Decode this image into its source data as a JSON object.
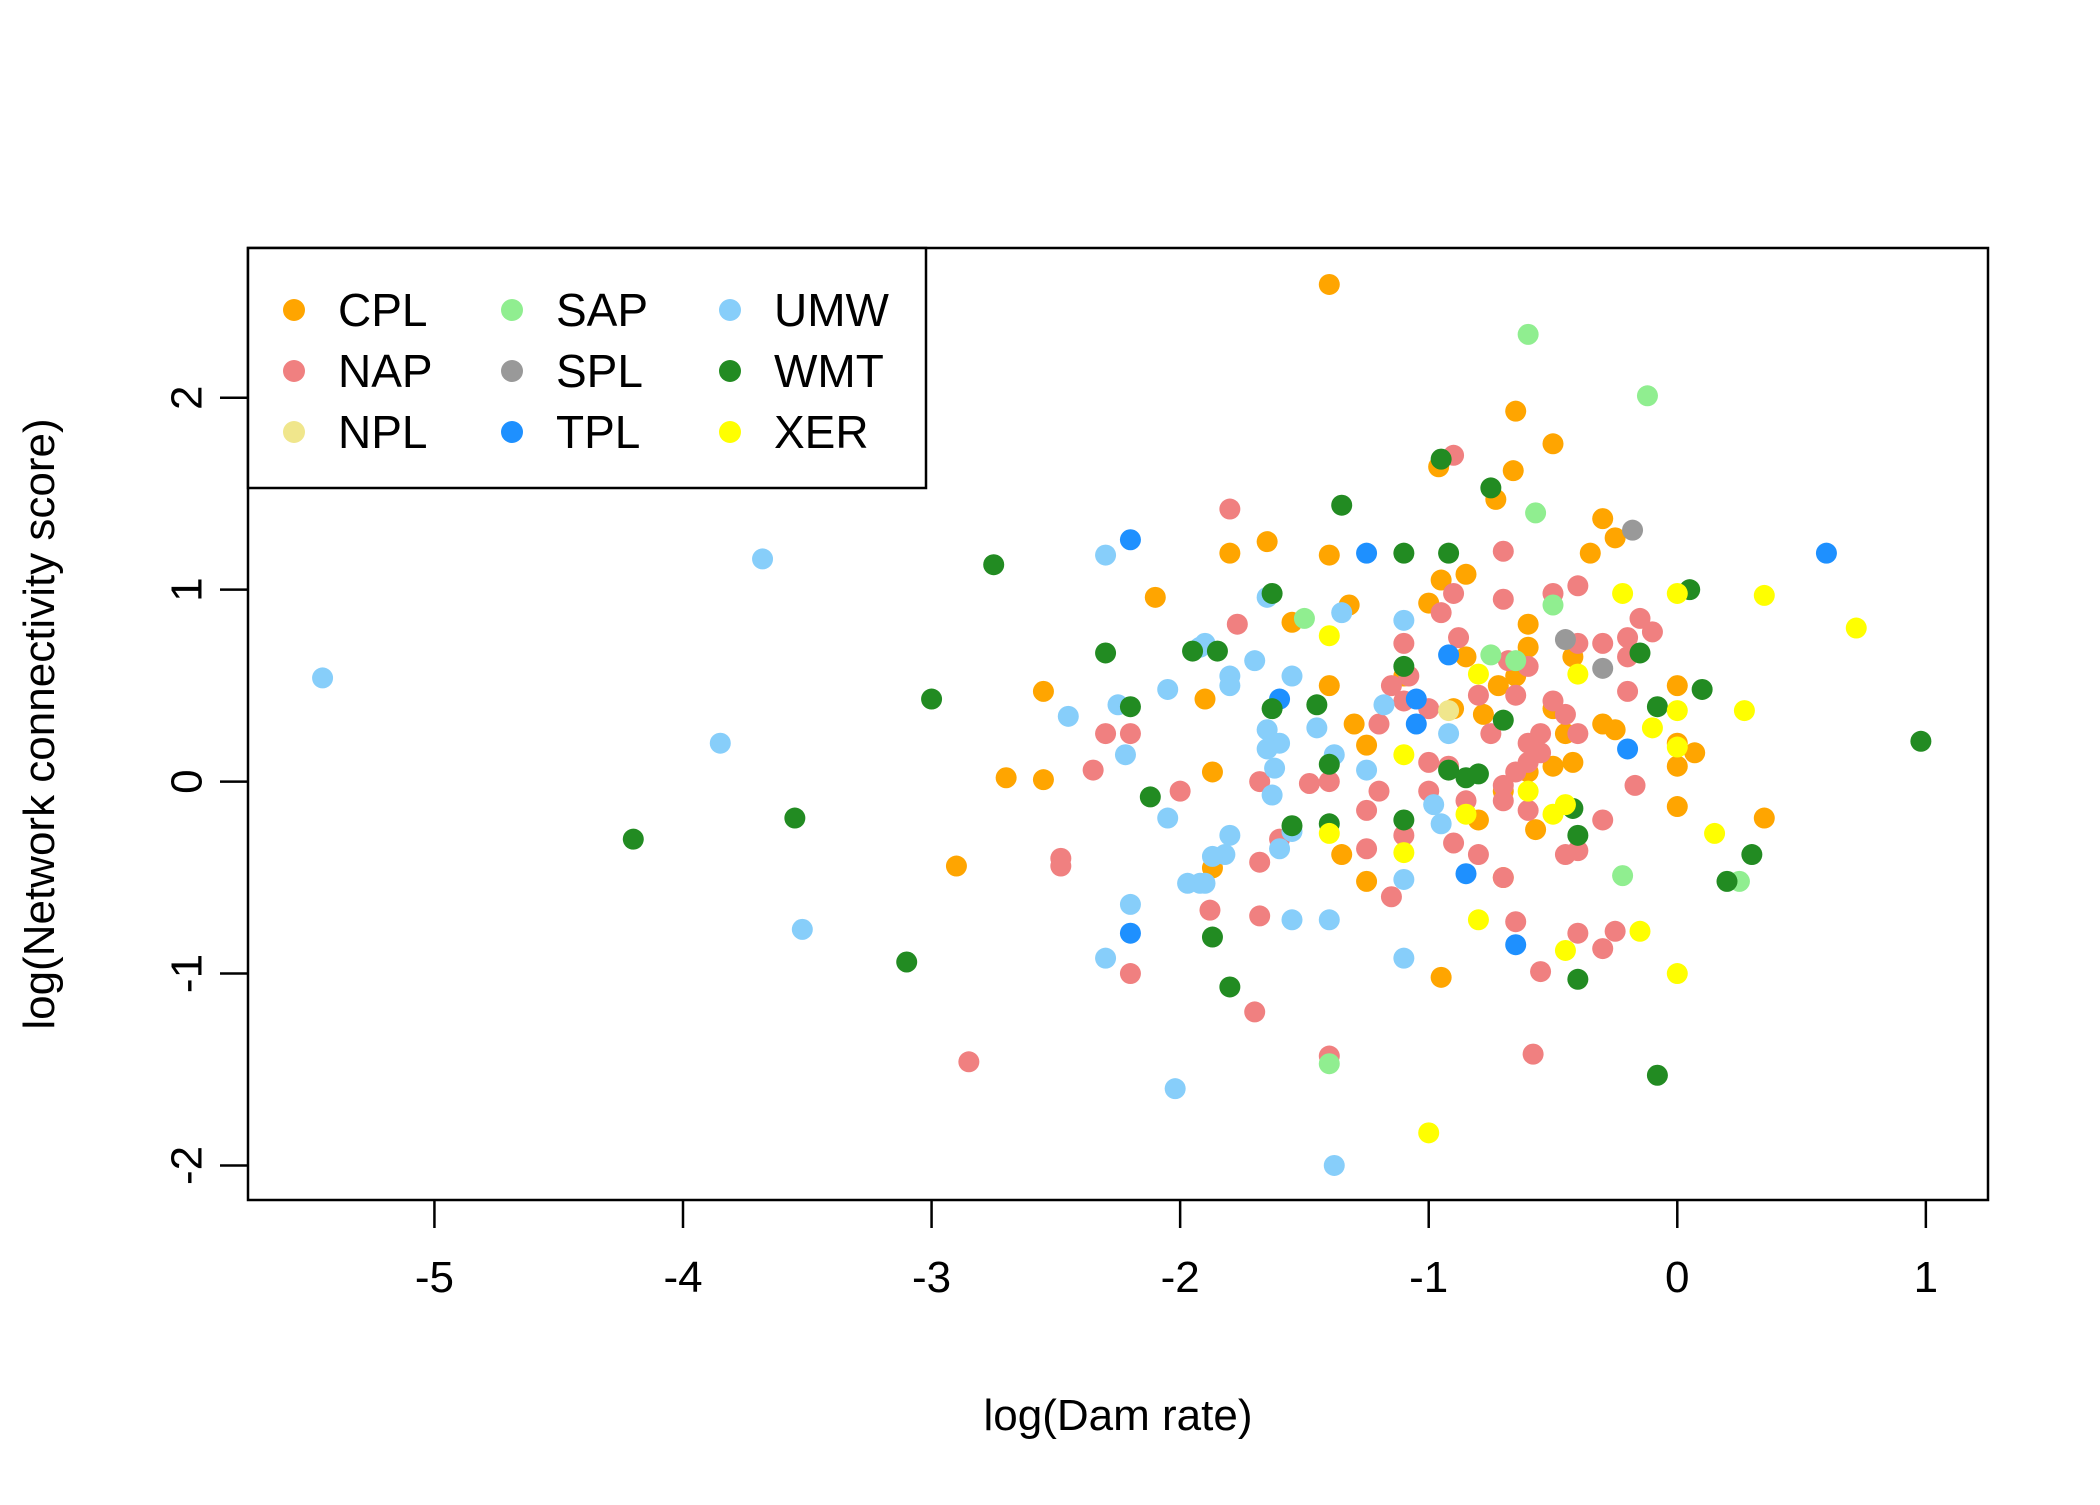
{
  "chart_data": {
    "type": "scatter",
    "title": "",
    "xlabel": "log(Dam rate)",
    "ylabel": "log(Network connectivity score)",
    "xlim": [
      -5.75,
      1.25
    ],
    "ylim": [
      -2.18,
      2.78
    ],
    "x_ticks": [
      -5,
      -4,
      -3,
      -2,
      -1,
      0,
      1
    ],
    "y_ticks": [
      -2,
      -1,
      0,
      1,
      2
    ],
    "grid": false,
    "legend_position": "top-left",
    "series": [
      {
        "name": "CPL",
        "color": "#FFA500",
        "points": [
          [
            -1.4,
            2.59
          ],
          [
            -0.65,
            1.93
          ],
          [
            -0.5,
            1.76
          ],
          [
            -0.96,
            1.64
          ],
          [
            -0.66,
            1.62
          ],
          [
            -0.73,
            1.47
          ],
          [
            -0.3,
            1.37
          ],
          [
            -0.25,
            1.27
          ],
          [
            -0.35,
            1.19
          ],
          [
            -1.4,
            1.18
          ],
          [
            -1.8,
            1.19
          ],
          [
            -1.65,
            1.25
          ],
          [
            -2.1,
            0.96
          ],
          [
            -1.32,
            0.92
          ],
          [
            -1.0,
            0.93
          ],
          [
            -0.85,
            1.08
          ],
          [
            -0.95,
            1.05
          ],
          [
            -1.55,
            0.83
          ],
          [
            -0.6,
            0.82
          ],
          [
            -0.6,
            0.7
          ],
          [
            -0.42,
            0.65
          ],
          [
            -1.4,
            0.5
          ],
          [
            -1.9,
            0.43
          ],
          [
            -2.55,
            0.47
          ],
          [
            -1.1,
            0.55
          ],
          [
            -0.9,
            0.38
          ],
          [
            -0.72,
            0.5
          ],
          [
            -0.78,
            0.35
          ],
          [
            -0.85,
            0.65
          ],
          [
            -0.65,
            0.55
          ],
          [
            -0.5,
            0.38
          ],
          [
            -0.45,
            0.25
          ],
          [
            -0.3,
            0.3
          ],
          [
            -0.25,
            0.27
          ],
          [
            0.0,
            0.5
          ],
          [
            0.0,
            0.2
          ],
          [
            0.0,
            0.08
          ],
          [
            0.07,
            0.15
          ],
          [
            -1.3,
            0.3
          ],
          [
            -1.25,
            0.19
          ],
          [
            -0.6,
            0.05
          ],
          [
            -0.5,
            0.08
          ],
          [
            -0.42,
            0.1
          ],
          [
            -2.7,
            0.02
          ],
          [
            -2.55,
            0.01
          ],
          [
            -1.87,
            0.05
          ],
          [
            -0.7,
            -0.05
          ],
          [
            -0.8,
            -0.2
          ],
          [
            -0.57,
            -0.25
          ],
          [
            -1.35,
            -0.38
          ],
          [
            -0.7,
            -0.5
          ],
          [
            -1.87,
            -0.45
          ],
          [
            -2.9,
            -0.44
          ],
          [
            -1.25,
            -0.52
          ],
          [
            -0.95,
            -1.02
          ],
          [
            0.0,
            -0.13
          ],
          [
            0.35,
            -0.19
          ]
        ]
      },
      {
        "name": "NAP",
        "color": "#F08080",
        "points": [
          [
            -0.9,
            1.7
          ],
          [
            -1.8,
            1.42
          ],
          [
            -0.7,
            1.2
          ],
          [
            -0.4,
            1.02
          ],
          [
            -0.5,
            0.98
          ],
          [
            -0.9,
            0.98
          ],
          [
            -0.95,
            0.88
          ],
          [
            -0.7,
            0.95
          ],
          [
            -0.4,
            0.72
          ],
          [
            -0.15,
            0.85
          ],
          [
            -0.1,
            0.78
          ],
          [
            -0.2,
            0.75
          ],
          [
            -0.88,
            0.75
          ],
          [
            -1.1,
            0.72
          ],
          [
            -1.77,
            0.82
          ],
          [
            -0.68,
            0.63
          ],
          [
            -0.6,
            0.6
          ],
          [
            -1.15,
            0.5
          ],
          [
            -1.1,
            0.42
          ],
          [
            -1.0,
            0.38
          ],
          [
            -0.2,
            0.47
          ],
          [
            -0.2,
            0.65
          ],
          [
            -0.3,
            0.72
          ],
          [
            -0.5,
            0.42
          ],
          [
            -0.65,
            0.45
          ],
          [
            -0.8,
            0.45
          ],
          [
            -1.2,
            0.3
          ],
          [
            -1.08,
            0.55
          ],
          [
            -0.45,
            0.35
          ],
          [
            -0.55,
            0.25
          ],
          [
            -0.4,
            0.25
          ],
          [
            -0.6,
            0.2
          ],
          [
            -0.55,
            0.15
          ],
          [
            -0.6,
            0.1
          ],
          [
            -0.75,
            0.25
          ],
          [
            -0.65,
            0.05
          ],
          [
            -0.92,
            0.08
          ],
          [
            -1.0,
            0.1
          ],
          [
            -2.3,
            0.25
          ],
          [
            -2.2,
            0.25
          ],
          [
            -2.35,
            0.06
          ],
          [
            -1.68,
            0.0
          ],
          [
            -1.48,
            -0.01
          ],
          [
            -1.4,
            0.0
          ],
          [
            -1.2,
            -0.05
          ],
          [
            -1.0,
            -0.05
          ],
          [
            -0.85,
            -0.1
          ],
          [
            -0.7,
            -0.02
          ],
          [
            -0.6,
            -0.15
          ],
          [
            -0.3,
            -0.2
          ],
          [
            -0.17,
            -0.02
          ],
          [
            -2.0,
            -0.05
          ],
          [
            -1.25,
            -0.15
          ],
          [
            -1.1,
            -0.28
          ],
          [
            -0.9,
            -0.32
          ],
          [
            -0.8,
            -0.38
          ],
          [
            -0.7,
            -0.1
          ],
          [
            -1.25,
            -0.35
          ],
          [
            -1.68,
            -0.42
          ],
          [
            -2.48,
            -0.4
          ],
          [
            -2.48,
            -0.44
          ],
          [
            -1.6,
            -0.3
          ],
          [
            -0.45,
            -0.38
          ],
          [
            -0.4,
            -0.36
          ],
          [
            -0.7,
            -0.5
          ],
          [
            -1.15,
            -0.6
          ],
          [
            -1.88,
            -0.67
          ],
          [
            -1.68,
            -0.7
          ],
          [
            -0.65,
            -0.73
          ],
          [
            -0.4,
            -0.79
          ],
          [
            -0.25,
            -0.78
          ],
          [
            -0.3,
            -0.87
          ],
          [
            -0.55,
            -0.99
          ],
          [
            -2.2,
            -1.0
          ],
          [
            -1.7,
            -1.2
          ],
          [
            -2.85,
            -1.46
          ],
          [
            -1.4,
            -1.43
          ],
          [
            -0.58,
            -1.42
          ]
        ]
      },
      {
        "name": "NPL",
        "color": "#F0E68C",
        "points": [
          [
            -0.92,
            0.37
          ]
        ]
      },
      {
        "name": "SAP",
        "color": "#90EE90",
        "points": [
          [
            -0.6,
            2.33
          ],
          [
            -0.12,
            2.01
          ],
          [
            -0.57,
            1.4
          ],
          [
            -0.5,
            0.92
          ],
          [
            -0.75,
            0.66
          ],
          [
            -0.65,
            0.63
          ],
          [
            -1.5,
            0.85
          ],
          [
            -0.22,
            -0.49
          ],
          [
            0.25,
            -0.52
          ],
          [
            -1.4,
            -1.47
          ]
        ]
      },
      {
        "name": "SPL",
        "color": "#999999",
        "points": [
          [
            -0.18,
            1.31
          ],
          [
            -0.45,
            0.74
          ],
          [
            -0.3,
            0.59
          ]
        ]
      },
      {
        "name": "TPL",
        "color": "#1E90FF",
        "points": [
          [
            0.6,
            1.19
          ],
          [
            -2.2,
            1.26
          ],
          [
            -1.25,
            1.19
          ],
          [
            -0.92,
            0.66
          ],
          [
            -1.6,
            0.43
          ],
          [
            -1.05,
            0.3
          ],
          [
            -1.05,
            0.43
          ],
          [
            -0.2,
            0.17
          ],
          [
            -0.85,
            -0.48
          ],
          [
            -2.2,
            -0.79
          ],
          [
            -0.65,
            -0.85
          ]
        ]
      },
      {
        "name": "UMW",
        "color": "#87CEFA",
        "points": [
          [
            -5.45,
            0.54
          ],
          [
            -3.68,
            1.16
          ],
          [
            -3.85,
            0.2
          ],
          [
            -3.52,
            -0.77
          ],
          [
            -2.3,
            1.18
          ],
          [
            -2.45,
            0.34
          ],
          [
            -2.25,
            0.4
          ],
          [
            -2.22,
            0.14
          ],
          [
            -1.9,
            0.72
          ],
          [
            -1.92,
            0.7
          ],
          [
            -2.05,
            0.48
          ],
          [
            -1.8,
            0.55
          ],
          [
            -1.8,
            0.5
          ],
          [
            -1.7,
            0.63
          ],
          [
            -1.65,
            0.96
          ],
          [
            -1.55,
            0.55
          ],
          [
            -1.65,
            0.27
          ],
          [
            -1.6,
            0.2
          ],
          [
            -1.62,
            0.2
          ],
          [
            -1.65,
            0.17
          ],
          [
            -1.62,
            0.07
          ],
          [
            -1.63,
            -0.07
          ],
          [
            -1.45,
            0.28
          ],
          [
            -1.38,
            0.14
          ],
          [
            -1.35,
            0.88
          ],
          [
            -1.1,
            0.84
          ],
          [
            -1.18,
            0.4
          ],
          [
            -1.25,
            0.06
          ],
          [
            -0.92,
            0.25
          ],
          [
            -0.98,
            -0.12
          ],
          [
            -0.95,
            -0.22
          ],
          [
            -2.2,
            -0.64
          ],
          [
            -2.05,
            -0.19
          ],
          [
            -1.8,
            -0.28
          ],
          [
            -1.82,
            -0.38
          ],
          [
            -1.87,
            -0.39
          ],
          [
            -1.97,
            -0.53
          ],
          [
            -1.92,
            -0.53
          ],
          [
            -1.9,
            -0.53
          ],
          [
            -1.55,
            -0.26
          ],
          [
            -1.6,
            -0.35
          ],
          [
            -1.55,
            -0.72
          ],
          [
            -1.4,
            -0.72
          ],
          [
            -1.1,
            -0.51
          ],
          [
            -1.1,
            -0.92
          ],
          [
            -2.3,
            -0.92
          ],
          [
            -2.02,
            -1.6
          ],
          [
            -1.38,
            -2.0
          ]
        ]
      },
      {
        "name": "WMT",
        "color": "#228B22",
        "points": [
          [
            0.98,
            0.21
          ],
          [
            -2.75,
            1.13
          ],
          [
            -1.35,
            1.44
          ],
          [
            -0.95,
            1.68
          ],
          [
            -0.75,
            1.53
          ],
          [
            -1.1,
            1.19
          ],
          [
            -0.92,
            1.19
          ],
          [
            -1.63,
            0.98
          ],
          [
            0.05,
            1.0
          ],
          [
            -2.3,
            0.67
          ],
          [
            -1.95,
            0.68
          ],
          [
            -1.85,
            0.68
          ],
          [
            -0.15,
            0.67
          ],
          [
            0.1,
            0.48
          ],
          [
            -0.08,
            0.39
          ],
          [
            -3.0,
            0.43
          ],
          [
            -2.2,
            0.39
          ],
          [
            -1.63,
            0.38
          ],
          [
            -1.45,
            0.4
          ],
          [
            -1.1,
            0.6
          ],
          [
            -0.7,
            0.32
          ],
          [
            -1.4,
            0.09
          ],
          [
            -0.92,
            0.06
          ],
          [
            -0.85,
            0.02
          ],
          [
            -0.8,
            0.04
          ],
          [
            -0.42,
            -0.14
          ],
          [
            -2.12,
            -0.08
          ],
          [
            -3.55,
            -0.19
          ],
          [
            -4.2,
            -0.3
          ],
          [
            -1.55,
            -0.23
          ],
          [
            -1.4,
            -0.22
          ],
          [
            -1.1,
            -0.2
          ],
          [
            -0.4,
            -0.28
          ],
          [
            0.3,
            -0.38
          ],
          [
            0.2,
            -0.52
          ],
          [
            -1.87,
            -0.81
          ],
          [
            -3.1,
            -0.94
          ],
          [
            -1.8,
            -1.07
          ],
          [
            -0.4,
            -1.03
          ],
          [
            -0.08,
            -1.53
          ]
        ]
      },
      {
        "name": "XER",
        "color": "#FFFF00",
        "points": [
          [
            -0.22,
            0.98
          ],
          [
            0.0,
            0.98
          ],
          [
            0.35,
            0.97
          ],
          [
            0.72,
            0.8
          ],
          [
            -1.4,
            0.76
          ],
          [
            -0.4,
            0.56
          ],
          [
            -0.8,
            0.56
          ],
          [
            -0.1,
            0.28
          ],
          [
            0.0,
            0.37
          ],
          [
            0.27,
            0.37
          ],
          [
            0.0,
            0.18
          ],
          [
            -1.1,
            0.14
          ],
          [
            -0.6,
            -0.05
          ],
          [
            -0.45,
            -0.12
          ],
          [
            -0.5,
            -0.17
          ],
          [
            -0.85,
            -0.17
          ],
          [
            -1.4,
            -0.27
          ],
          [
            -1.1,
            -0.37
          ],
          [
            0.15,
            -0.27
          ],
          [
            -0.8,
            -0.72
          ],
          [
            -0.15,
            -0.78
          ],
          [
            -0.45,
            -0.88
          ],
          [
            0.0,
            -1.0
          ],
          [
            -1.0,
            -1.83
          ]
        ]
      }
    ]
  }
}
